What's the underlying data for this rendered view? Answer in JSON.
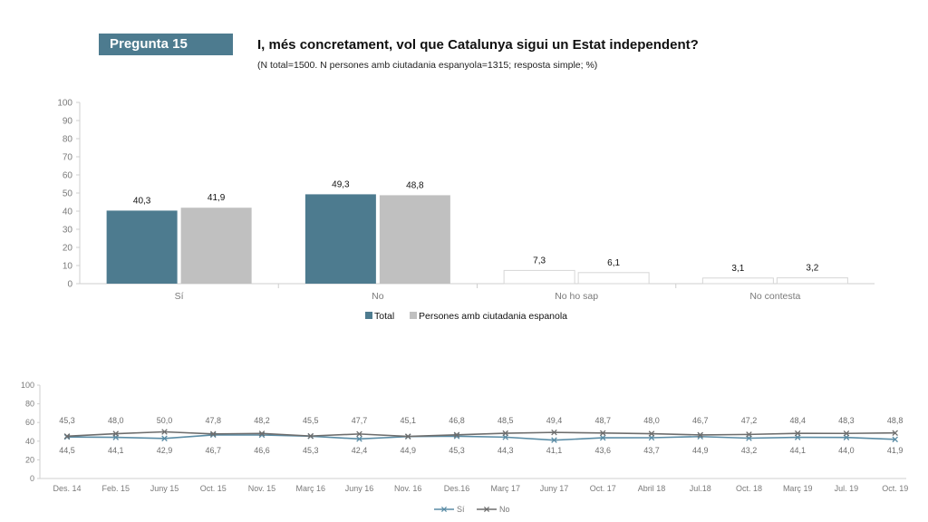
{
  "header": {
    "badge": "Pregunta 15",
    "title": "I, més concretament, vol que Catalunya sigui un Estat independent?",
    "subtitle": "(N total=1500. N persones amb ciutadania espanyola=1315; resposta simple; %)"
  },
  "chart_data": [
    {
      "type": "bar",
      "categories": [
        "Sí",
        "No",
        "No ho sap",
        "No contesta"
      ],
      "series": [
        {
          "name": "Total",
          "values": [
            40.3,
            49.3,
            7.3,
            3.1
          ],
          "labels": [
            "40,3",
            "49,3",
            "7,3",
            "3,1"
          ]
        },
        {
          "name": "Persones amb ciutadania espanola",
          "values": [
            41.9,
            48.8,
            6.1,
            3.2
          ],
          "labels": [
            "41,9",
            "48,8",
            "6,1",
            "3,2"
          ]
        }
      ],
      "ylim": [
        0,
        100
      ],
      "yticks": [
        "0",
        "10",
        "20",
        "30",
        "40",
        "50",
        "60",
        "70",
        "80",
        "90",
        "100"
      ],
      "legend": "bottom",
      "grid": false
    },
    {
      "type": "line",
      "x": [
        "Des. 14",
        "Feb. 15",
        "Juny 15",
        "Oct. 15",
        "Nov. 15",
        "Març 16",
        "Juny 16",
        "Nov. 16",
        "Des.16",
        "Març 17",
        "Juny 17",
        "Oct. 17",
        "Abril 18",
        "Jul.18",
        "Oct. 18",
        "Març 19",
        "Jul. 19",
        "Oct. 19"
      ],
      "series": [
        {
          "name": "Sí",
          "values": [
            44.5,
            44.1,
            42.9,
            46.7,
            46.6,
            45.3,
            42.4,
            44.9,
            45.3,
            44.3,
            41.1,
            43.6,
            43.7,
            44.9,
            43.2,
            44.1,
            44.0,
            41.9
          ],
          "labels": [
            "44,5",
            "44,1",
            "42,9",
            "46,7",
            "46,6",
            "45,3",
            "42,4",
            "44,9",
            "45,3",
            "44,3",
            "41,1",
            "43,6",
            "43,7",
            "44,9",
            "43,2",
            "44,1",
            "44,0",
            "41,9"
          ]
        },
        {
          "name": "No",
          "values": [
            45.3,
            48.0,
            50.0,
            47.8,
            48.2,
            45.5,
            47.7,
            45.1,
            46.8,
            48.5,
            49.4,
            48.7,
            48.0,
            46.7,
            47.2,
            48.4,
            48.3,
            48.8
          ],
          "labels": [
            "45,3",
            "48,0",
            "50,0",
            "47,8",
            "48,2",
            "45,5",
            "47,7",
            "45,1",
            "46,8",
            "48,5",
            "49,4",
            "48,7",
            "48,0",
            "46,7",
            "47,2",
            "48,4",
            "48,3",
            "48,8"
          ]
        }
      ],
      "ylim": [
        0,
        100
      ],
      "yticks": [
        "0",
        "20",
        "40",
        "60",
        "80",
        "100"
      ],
      "legend": "bottom",
      "grid": false
    }
  ],
  "colors": {
    "total": "#4d7b8f",
    "spanish": "#c0c0c0",
    "si_line": "#5a8ca5",
    "no_line": "#6d6d6d",
    "badge": "#4d7b8f"
  }
}
